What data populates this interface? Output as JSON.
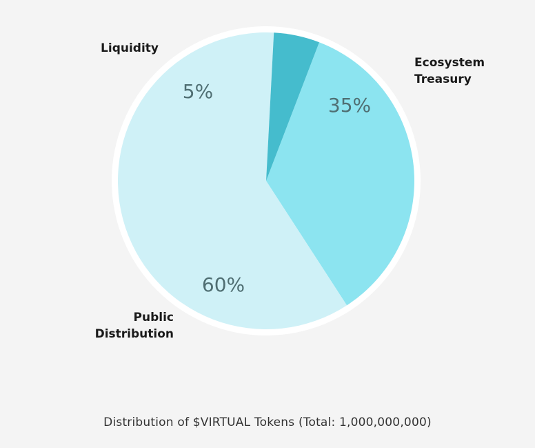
{
  "chart_data": {
    "type": "pie",
    "title": "",
    "caption": "Distribution of $VIRTUAL Tokens (Total: 1,000,000,000)",
    "categories": [
      "Ecosystem Treasury",
      "Public Distribution",
      "Liquidity"
    ],
    "label_lines": [
      [
        "Ecosystem",
        "Treasury"
      ],
      [
        "Public",
        "Distribution"
      ],
      [
        "Liquidity"
      ]
    ],
    "values": [
      35,
      60,
      5
    ],
    "value_labels": [
      "35%",
      "60%",
      "5%"
    ],
    "colors": [
      "#8ce4f0",
      "#cff1f7",
      "#45bccd"
    ],
    "ring_color": "#ffffff",
    "start_angle_deg": 21,
    "direction": "clockwise",
    "legend": "none"
  }
}
